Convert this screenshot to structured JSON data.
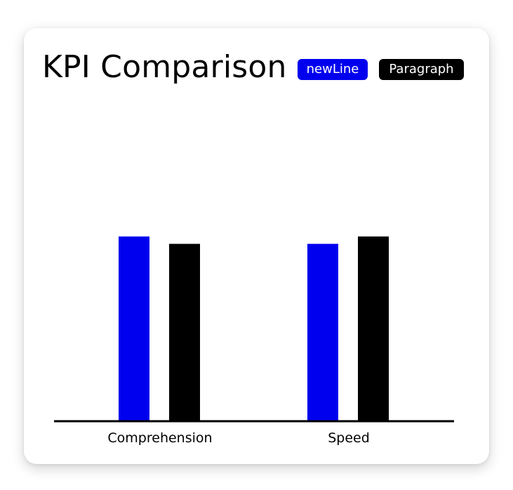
{
  "card": {
    "title": "KPI Comparison"
  },
  "legend": [
    {
      "label": "newLine",
      "color": "#0000ee"
    },
    {
      "label": "Paragraph",
      "color": "#000000"
    }
  ],
  "chart_data": {
    "type": "bar",
    "title": "KPI Comparison",
    "categories": [
      "Comprehension",
      "Speed"
    ],
    "series": [
      {
        "name": "newLine",
        "color": "#0000ee",
        "values": [
          100,
          96
        ]
      },
      {
        "name": "Paragraph",
        "color": "#000000",
        "values": [
          96,
          100
        ]
      }
    ],
    "xlabel": "",
    "ylabel": "",
    "ylim": [
      0,
      152
    ],
    "grid": false,
    "legend_position": "top-right",
    "y_axis_shown": false
  }
}
